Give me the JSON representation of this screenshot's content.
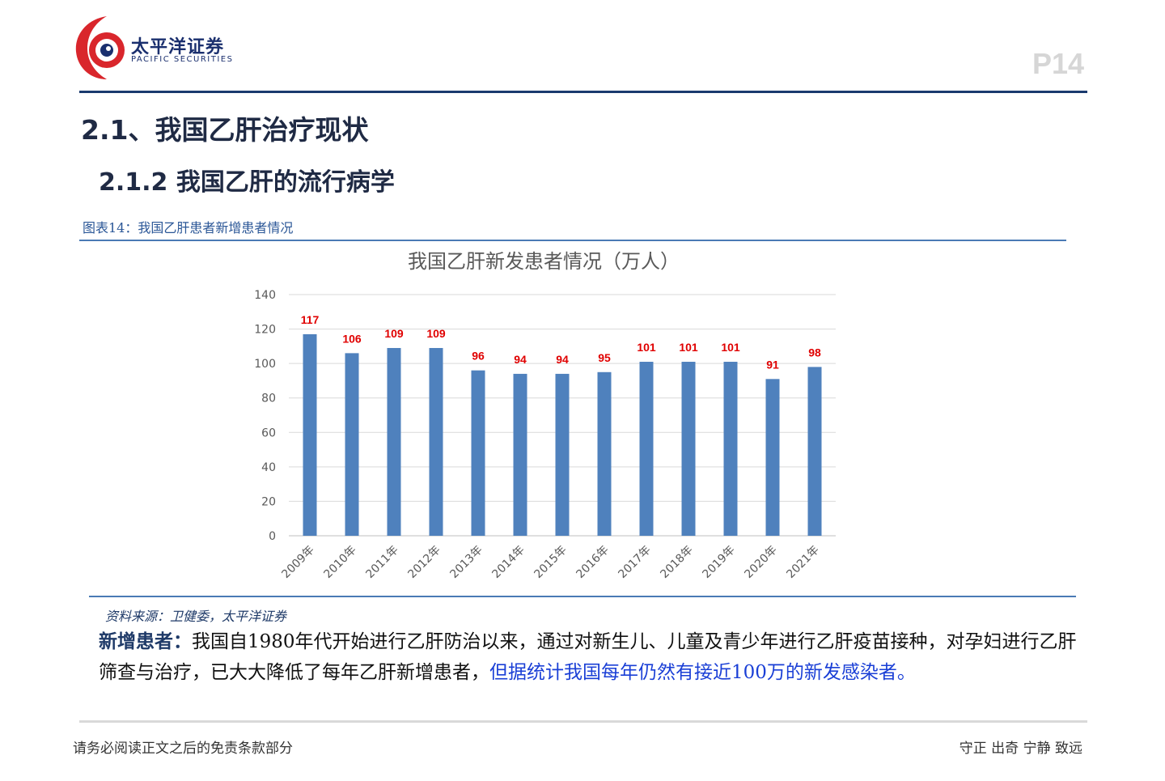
{
  "header": {
    "logo_cn": "太平洋证券",
    "logo_en": "PACIFIC SECURITIES",
    "page_number": "P14"
  },
  "section_title": "2.1、我国乙肝治疗现状",
  "subsection_title": "2.1.2 我国乙肝的流行病学",
  "figure_caption": "图表14：我国乙肝患者新增患者情况",
  "chart_data": {
    "type": "bar",
    "title": "我国乙肝新发患者情况（万人）",
    "categories": [
      "2009年",
      "2010年",
      "2011年",
      "2012年",
      "2013年",
      "2014年",
      "2015年",
      "2016年",
      "2017年",
      "2018年",
      "2019年",
      "2020年",
      "2021年"
    ],
    "values": [
      117,
      106,
      109,
      109,
      96,
      94,
      94,
      95,
      101,
      101,
      101,
      91,
      98
    ],
    "ylim": [
      0,
      140
    ],
    "yticks": [
      0,
      20,
      40,
      60,
      80,
      100,
      120,
      140
    ],
    "bar_color": "#4f81bd",
    "label_color": "#e00000",
    "grid": true,
    "legend": false
  },
  "source_note": "资料来源：卫健委，太平洋证券",
  "paragraph": {
    "lead": "新增患者：",
    "body": "我国自1980年代开始进行乙肝防治以来，通过对新生儿、儿童及青少年进行乙肝疫苗接种，对孕妇进行乙肝筛查与治疗，已大大降低了每年乙肝新增患者，",
    "highlight": "但据统计我国每年仍然有接近100万的新发感染者。"
  },
  "footer": {
    "disclaimer": "请务必阅读正文之后的免责条款部分",
    "motto": "守正 出奇 宁静 致远"
  }
}
